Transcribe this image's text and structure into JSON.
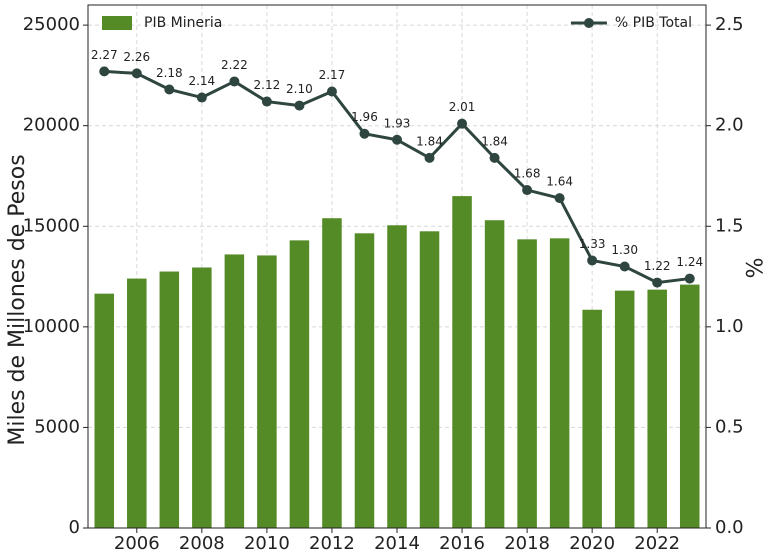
{
  "chart_data": {
    "type": "bar",
    "ylabel": "Miles de Millones de Pesos",
    "y2label": "%",
    "x": [
      2005,
      2006,
      2007,
      2008,
      2009,
      2010,
      2011,
      2012,
      2013,
      2014,
      2015,
      2016,
      2017,
      2018,
      2019,
      2020,
      2021,
      2022,
      2023
    ],
    "series": [
      {
        "name": "PIB Mineria",
        "type": "bar",
        "color": "#548b27",
        "legend": "upper left",
        "values": [
          11650,
          12400,
          12750,
          12950,
          13600,
          13550,
          14300,
          15400,
          14650,
          15050,
          14750,
          16500,
          15300,
          14350,
          14400,
          10850,
          11800,
          11850,
          12100
        ]
      },
      {
        "name": "% PIB Total",
        "type": "line",
        "axis": "y2",
        "color": "#2f4640",
        "legend": "upper right",
        "values": [
          2.27,
          2.26,
          2.18,
          2.14,
          2.22,
          2.12,
          2.1,
          2.17,
          1.96,
          1.93,
          1.84,
          2.01,
          1.84,
          1.68,
          1.64,
          1.33,
          1.3,
          1.22,
          1.24
        ],
        "value_labels": [
          "2.27",
          "2.26",
          "2.18",
          "2.14",
          "2.22",
          "2.12",
          "2.10",
          "2.17",
          "1.96",
          "1.93",
          "1.84",
          "2.01",
          "1.84",
          "1.68",
          "1.64",
          "1.33",
          "1.30",
          "1.22",
          "1.24"
        ]
      }
    ],
    "xlim": [
      2004.5,
      2023.5
    ],
    "xticks": [
      2006,
      2008,
      2010,
      2012,
      2014,
      2016,
      2018,
      2020,
      2022
    ],
    "ylim": [
      0,
      26000
    ],
    "yticks": [
      0,
      5000,
      10000,
      15000,
      20000,
      25000
    ],
    "y2lim": [
      0,
      2.6
    ],
    "y2ticks": [
      {
        "value": 0,
        "label": "0.0"
      },
      {
        "value": 0.5,
        "label": "0.5"
      },
      {
        "value": 1,
        "label": "1.0"
      },
      {
        "value": 1.5,
        "label": "1.5"
      },
      {
        "value": 2,
        "label": "2.0"
      },
      {
        "value": 2.5,
        "label": "2.5"
      }
    ],
    "grid": true
  }
}
